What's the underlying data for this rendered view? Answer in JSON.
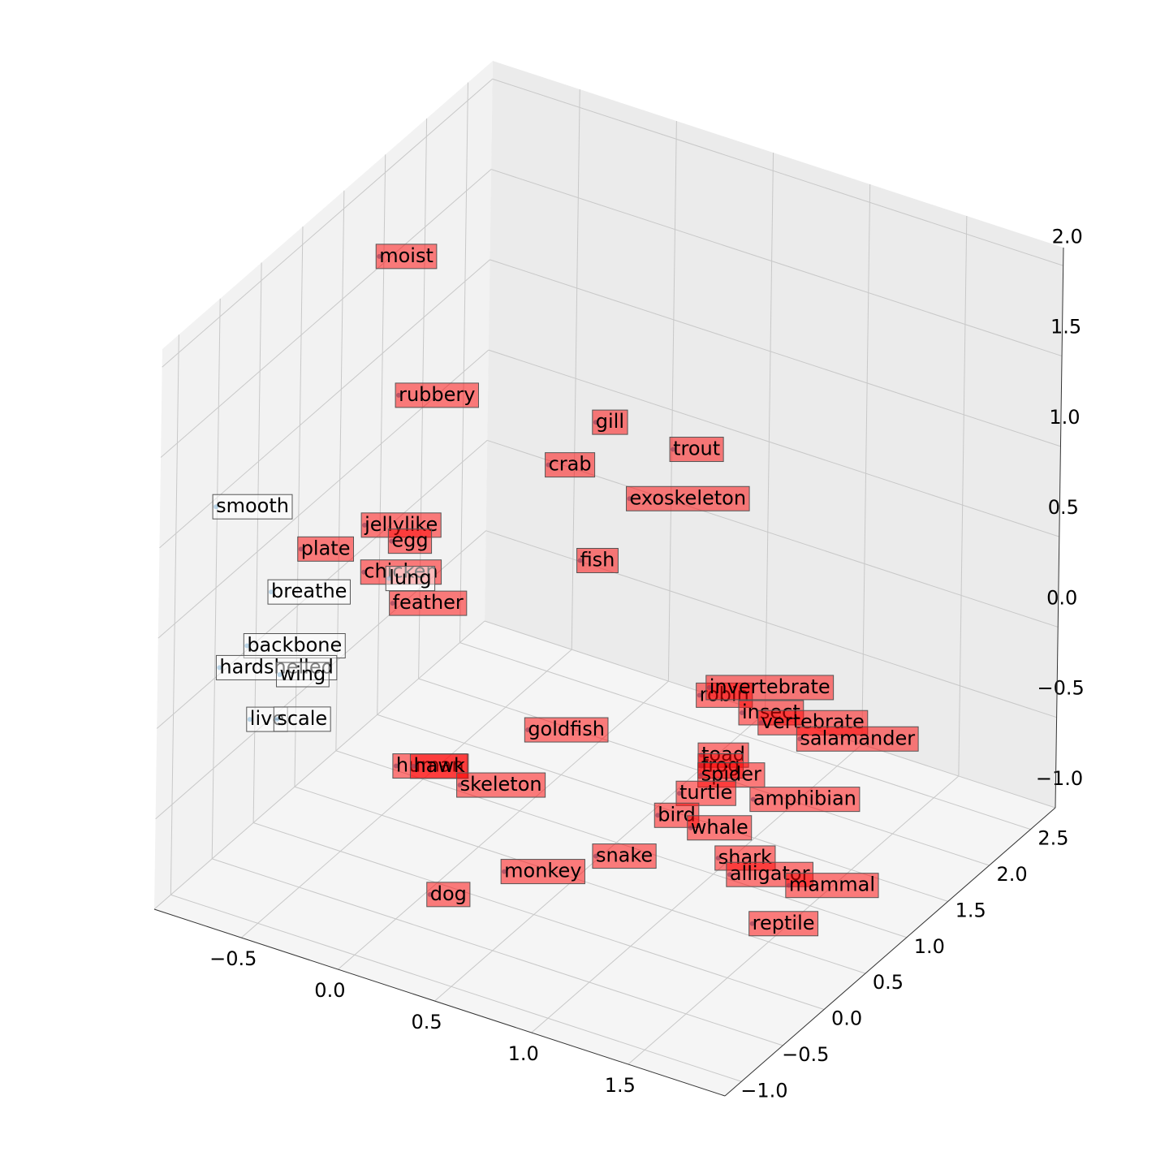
{
  "chart_data": {
    "type": "scatter3d",
    "xlim": [
      -0.95,
      2.0
    ],
    "ylim": [
      -1.2,
      2.8
    ],
    "zlim": [
      -1.0,
      2.1
    ],
    "xticks": [
      {
        "value": -0.5,
        "label": "−0.5"
      },
      {
        "value": 0,
        "label": "0.0"
      },
      {
        "value": 0.5,
        "label": "0.5"
      },
      {
        "value": 1,
        "label": "1.0"
      },
      {
        "value": 1.5,
        "label": "1.5"
      }
    ],
    "yticks": [
      {
        "value": -1,
        "label": "−1.0"
      },
      {
        "value": -0.5,
        "label": "−0.5"
      },
      {
        "value": 0,
        "label": "0.0"
      },
      {
        "value": 0.5,
        "label": "0.5"
      },
      {
        "value": 1,
        "label": "1.0"
      },
      {
        "value": 1.5,
        "label": "1.5"
      },
      {
        "value": 2,
        "label": "2.0"
      },
      {
        "value": 2.5,
        "label": "2.5"
      }
    ],
    "zticks": [
      {
        "value": -1,
        "label": "−1.0"
      },
      {
        "value": -0.5,
        "label": "−0.5"
      },
      {
        "value": 0,
        "label": "0.0"
      },
      {
        "value": 0.5,
        "label": "0.5"
      },
      {
        "value": 1,
        "label": "1.0"
      },
      {
        "value": 1.5,
        "label": "1.5"
      },
      {
        "value": 2,
        "label": "2.0"
      }
    ],
    "grid": true,
    "points": [
      {
        "label": "moist",
        "x": -0.68,
        "y": 0.8,
        "z": 1.91,
        "color": "#ff0000"
      },
      {
        "label": "rubbery",
        "x": -0.57,
        "y": 0.8,
        "z": 1.18,
        "color": "#ff0000"
      },
      {
        "label": "gill",
        "x": 0.11,
        "y": 1.6,
        "z": 0.95,
        "color": "#ff0000"
      },
      {
        "label": "trout",
        "x": 0.51,
        "y": 1.6,
        "z": 0.94,
        "color": "#ff0000"
      },
      {
        "label": "crab",
        "x": -0.13,
        "y": 1.6,
        "z": 0.63,
        "color": "#ff0000"
      },
      {
        "label": "exoskeleton",
        "x": 0.29,
        "y": 1.6,
        "z": 0.59,
        "color": "#ff0000"
      },
      {
        "label": "fish",
        "x": 0.04,
        "y": 1.6,
        "z": 0.16,
        "color": "#ff0000"
      },
      {
        "label": "smooth",
        "x": -0.83,
        "y": -0.8,
        "z": 1.11,
        "color": "#ffffff"
      },
      {
        "label": "jellylike",
        "x": -0.4,
        "y": 0.0,
        "z": 0.84,
        "color": "#ff0000"
      },
      {
        "label": "egg",
        "x": -0.26,
        "y": 0.0,
        "z": 0.8,
        "color": "#ff0000"
      },
      {
        "label": "plate",
        "x": -0.39,
        "y": -0.8,
        "z": 1.03,
        "color": "#ff0000"
      },
      {
        "label": "chicken",
        "x": -0.4,
        "y": 0.0,
        "z": 0.58,
        "color": "#ff0000"
      },
      {
        "label": "lung",
        "x": -0.27,
        "y": 0.0,
        "z": 0.59,
        "color": "#ffffff"
      },
      {
        "label": "breathe",
        "x": -0.54,
        "y": -0.8,
        "z": 0.74,
        "color": "#ffffff"
      },
      {
        "label": "feather",
        "x": -0.25,
        "y": 0.0,
        "z": 0.46,
        "color": "#ff0000"
      },
      {
        "label": "backbone",
        "x": -0.66,
        "y": -0.8,
        "z": 0.4,
        "color": "#ffffff"
      },
      {
        "label": "hardshelled",
        "x": -0.8,
        "y": -0.8,
        "z": 0.23,
        "color": "#ffffff"
      },
      {
        "label": "wing",
        "x": -0.49,
        "y": -0.8,
        "z": 0.3,
        "color": "#ffffff"
      },
      {
        "label": "live",
        "x": -0.64,
        "y": -0.8,
        "z": 0.0,
        "color": "#ffffff"
      },
      {
        "label": "scale",
        "x": -0.5,
        "y": -0.8,
        "z": 0.05,
        "color": "#ffffff"
      },
      {
        "label": "robin",
        "x": 1.0,
        "y": 0.8,
        "z": 0.07,
        "color": "#ff0000"
      },
      {
        "label": "invertebrate",
        "x": 1.05,
        "y": 0.8,
        "z": 0.13,
        "color": "#ff0000"
      },
      {
        "label": "insect",
        "x": 1.22,
        "y": 0.8,
        "z": 0.05,
        "color": "#ff0000"
      },
      {
        "label": "vertebrate",
        "x": 1.32,
        "y": 0.8,
        "z": 0.03,
        "color": "#ff0000"
      },
      {
        "label": "salamander",
        "x": 1.52,
        "y": 0.8,
        "z": 0.01,
        "color": "#ff0000"
      },
      {
        "label": "goldfish",
        "x": 0.12,
        "y": 0.8,
        "z": -0.43,
        "color": "#ff0000"
      },
      {
        "label": "human",
        "x": -0.22,
        "y": 0.0,
        "z": -0.43,
        "color": "#ff0000"
      },
      {
        "label": "hawk",
        "x": -0.13,
        "y": 0.0,
        "z": -0.4,
        "color": "#ff0000"
      },
      {
        "label": "skeleton",
        "x": 0.11,
        "y": 0.0,
        "z": -0.42,
        "color": "#ff0000"
      },
      {
        "label": "toad",
        "x": 1.35,
        "y": 0.0,
        "z": 0.18,
        "color": "#ff0000"
      },
      {
        "label": "frog",
        "x": 1.35,
        "y": 0.0,
        "z": 0.12,
        "color": "#ff0000"
      },
      {
        "label": "spider",
        "x": 1.35,
        "y": 0.0,
        "z": 0.07,
        "color": "#ff0000"
      },
      {
        "label": "turtle",
        "x": 1.24,
        "y": 0.0,
        "z": -0.07,
        "color": "#ff0000"
      },
      {
        "label": "amphibian",
        "x": 1.62,
        "y": 0.0,
        "z": 0.03,
        "color": "#ff0000"
      },
      {
        "label": "bird",
        "x": 1.13,
        "y": 0.0,
        "z": -0.23,
        "color": "#ff0000"
      },
      {
        "label": "whale",
        "x": 1.3,
        "y": 0.0,
        "z": -0.24,
        "color": "#ff0000"
      },
      {
        "label": "snake",
        "x": 1.15,
        "y": -0.8,
        "z": -0.13,
        "color": "#ff0000"
      },
      {
        "label": "shark",
        "x": 1.78,
        "y": -0.8,
        "z": 0.08,
        "color": "#ff0000"
      },
      {
        "label": "alligator",
        "x": 1.84,
        "y": -0.8,
        "z": 0.01,
        "color": "#ff0000"
      },
      {
        "label": "mammal",
        "x": 1.81,
        "y": 0.0,
        "z": -0.38,
        "color": "#ff0000"
      },
      {
        "label": "monkey",
        "x": 0.68,
        "y": -0.8,
        "z": -0.38,
        "color": "#ff0000"
      },
      {
        "label": "dog",
        "x": 0.3,
        "y": -0.8,
        "z": -0.64,
        "color": "#ff0000"
      },
      {
        "label": "reptile",
        "x": 1.96,
        "y": -0.8,
        "z": -0.22,
        "color": "#ff0000"
      }
    ]
  }
}
